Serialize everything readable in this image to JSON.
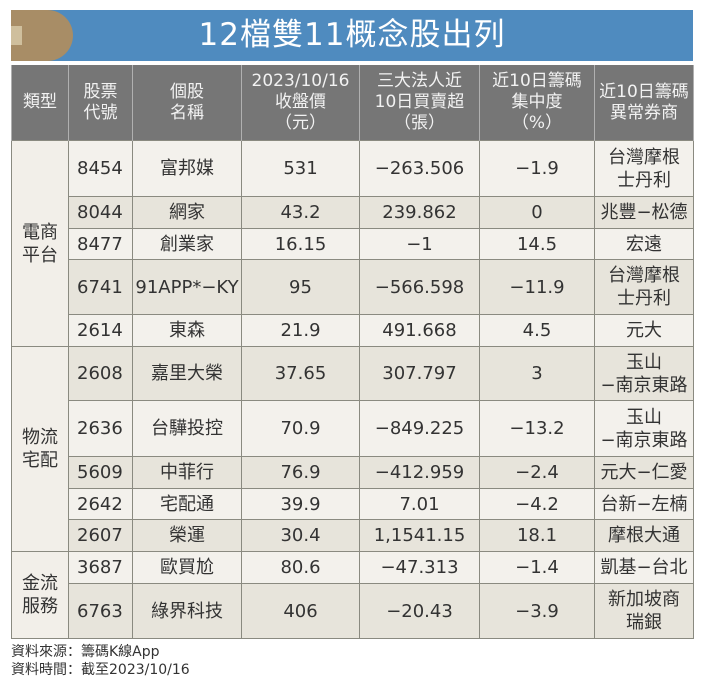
{
  "title": "12檔雙11概念股出列",
  "colors": {
    "title_bg": "#4f8bbf",
    "title_badge": "#a88d66",
    "header_bg": "#767676",
    "row_light": "#f3f1ec",
    "row_dark": "#e7e4db"
  },
  "headers": [
    {
      "lines": [
        "類型"
      ]
    },
    {
      "lines": [
        "股票",
        "代號"
      ]
    },
    {
      "lines": [
        "個股",
        "名稱"
      ]
    },
    {
      "lines": [
        "2023/10/16",
        "收盤價",
        "（元）"
      ]
    },
    {
      "lines": [
        "三大法人近",
        "10日買賣超",
        "（張）"
      ]
    },
    {
      "lines": [
        "近10日籌碼",
        "集中度",
        "（%）"
      ]
    },
    {
      "lines": [
        "近10日籌碼",
        "異常券商"
      ]
    }
  ],
  "groups": [
    {
      "category": [
        "電商",
        "平台"
      ],
      "rows": [
        {
          "code": "8454",
          "name": "富邦媒",
          "close": "531",
          "net": "−263.506",
          "conc": "−1.9",
          "broker": [
            "台灣摩根",
            "士丹利"
          ]
        },
        {
          "code": "8044",
          "name": "網家",
          "close": "43.2",
          "net": "239.862",
          "conc": "0",
          "broker": [
            "兆豐−松德"
          ]
        },
        {
          "code": "8477",
          "name": "創業家",
          "close": "16.15",
          "net": "−1",
          "conc": "14.5",
          "broker": [
            "宏遠"
          ]
        },
        {
          "code": "6741",
          "name": "91APP*−KY",
          "close": "95",
          "net": "−566.598",
          "conc": "−11.9",
          "broker": [
            "台灣摩根",
            "士丹利"
          ]
        },
        {
          "code": "2614",
          "name": "東森",
          "close": "21.9",
          "net": "491.668",
          "conc": "4.5",
          "broker": [
            "元大"
          ]
        }
      ]
    },
    {
      "category": [
        "物流",
        "宅配"
      ],
      "rows": [
        {
          "code": "2608",
          "name": "嘉里大榮",
          "close": "37.65",
          "net": "307.797",
          "conc": "3",
          "broker": [
            "玉山",
            "−南京東路"
          ]
        },
        {
          "code": "2636",
          "name": "台驊投控",
          "close": "70.9",
          "net": "−849.225",
          "conc": "−13.2",
          "broker": [
            "玉山",
            "−南京東路"
          ]
        },
        {
          "code": "5609",
          "name": "中菲行",
          "close": "76.9",
          "net": "−412.959",
          "conc": "−2.4",
          "broker": [
            "元大−仁愛"
          ]
        },
        {
          "code": "2642",
          "name": "宅配通",
          "close": "39.9",
          "net": "7.01",
          "conc": "−4.2",
          "broker": [
            "台新−左楠"
          ]
        },
        {
          "code": "2607",
          "name": "榮運",
          "close": "30.4",
          "net": "1,1541.15",
          "conc": "18.1",
          "broker": [
            "摩根大通"
          ]
        }
      ]
    },
    {
      "category": [
        "金流",
        "服務"
      ],
      "rows": [
        {
          "code": "3687",
          "name": "歐買尬",
          "close": "80.6",
          "net": "−47.313",
          "conc": "−1.4",
          "broker": [
            "凱基−台北"
          ]
        },
        {
          "code": "6763",
          "name": "綠界科技",
          "close": "406",
          "net": "−20.43",
          "conc": "−3.9",
          "broker": [
            "新加坡商",
            "瑞銀"
          ]
        }
      ]
    }
  ],
  "footer": {
    "source": "資料來源：籌碼K線App",
    "time": "資料時間：截至2023/10/16"
  }
}
